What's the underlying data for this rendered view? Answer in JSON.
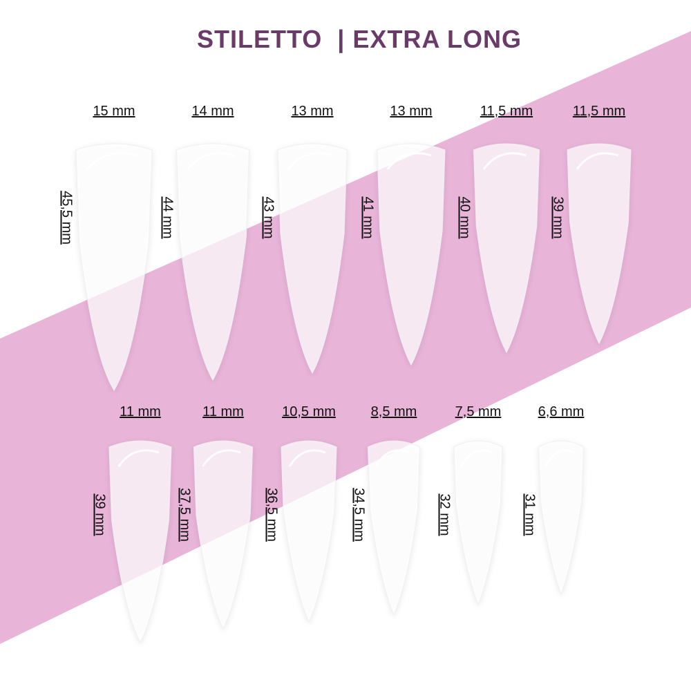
{
  "title": "STILETTO  | EXTRA LONG",
  "nails": [
    [
      {
        "width": "15 mm",
        "length": "45,5 mm"
      },
      {
        "width": "14 mm",
        "length": "44 mm"
      },
      {
        "width": "13 mm",
        "length": "43 mm"
      },
      {
        "width": "13 mm",
        "length": "41 mm"
      },
      {
        "width": "11,5 mm",
        "length": "40 mm"
      },
      {
        "width": "11,5 mm",
        "length": "39 mm"
      }
    ],
    [
      {
        "width": "11 mm",
        "length": "39 mm"
      },
      {
        "width": "11 mm",
        "length": "37,5 mm"
      },
      {
        "width": "10,5 mm",
        "length": "36,5 mm"
      },
      {
        "width": "8,5 mm",
        "length": "34,5 mm"
      },
      {
        "width": "7,5 mm",
        "length": "32 mm"
      },
      {
        "width": "6,6 mm",
        "length": "31 mm"
      }
    ]
  ]
}
